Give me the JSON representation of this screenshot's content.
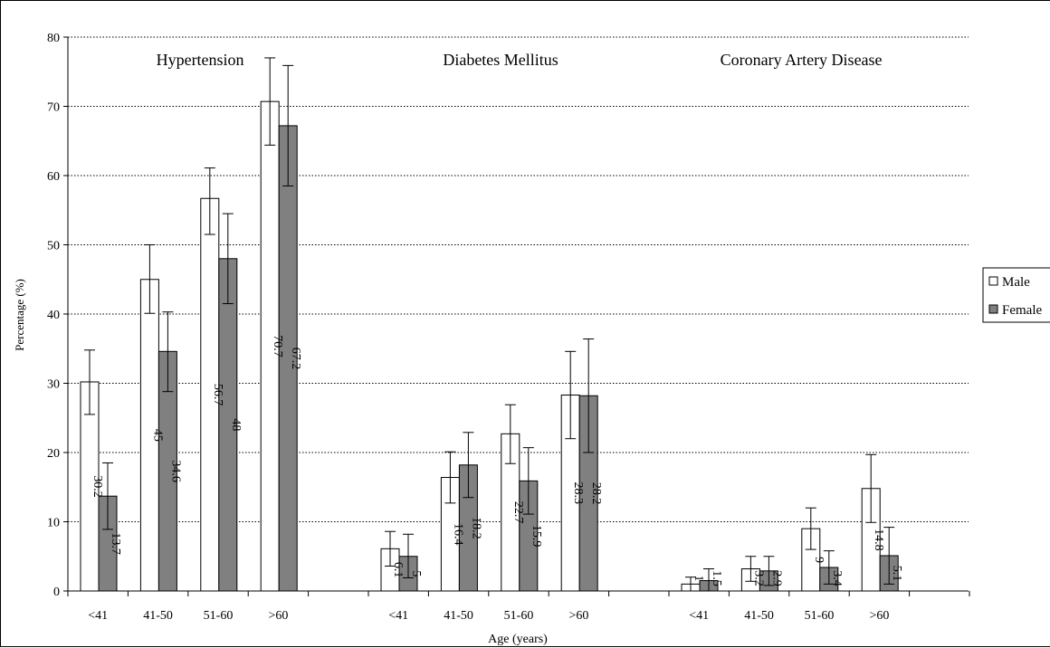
{
  "chart_data": {
    "type": "bar",
    "xlabel": "Age (years)",
    "ylabel": "Percentage (%)",
    "ylim": [
      0,
      80
    ],
    "yticks": [
      0,
      10,
      20,
      30,
      40,
      50,
      60,
      70,
      80
    ],
    "grid": true,
    "legend_position": "right",
    "groups": [
      {
        "title": "Hypertension",
        "categories": [
          "<41",
          "41-50",
          "51-60",
          ">60"
        ],
        "series": [
          {
            "name": "Male",
            "values": [
              30.2,
              45,
              56.7,
              70.7
            ],
            "errors": [
              [
                25.5,
                34.8
              ],
              [
                40.1,
                50.0
              ],
              [
                51.5,
                61.1
              ],
              [
                64.4,
                77.0
              ]
            ]
          },
          {
            "name": "Female",
            "values": [
              13.7,
              34.6,
              48,
              67.2
            ],
            "errors": [
              [
                8.9,
                18.5
              ],
              [
                28.8,
                40.3
              ],
              [
                41.5,
                54.5
              ],
              [
                58.5,
                75.9
              ]
            ]
          }
        ]
      },
      {
        "title": "Diabetes Mellitus",
        "categories": [
          "<41",
          "41-50",
          "51-60",
          ">60"
        ],
        "series": [
          {
            "name": "Male",
            "values": [
              6.1,
              16.4,
              22.7,
              28.3
            ],
            "errors": [
              [
                3.6,
                8.6
              ],
              [
                12.7,
                20.1
              ],
              [
                18.4,
                26.9
              ],
              [
                22.0,
                34.6
              ]
            ]
          },
          {
            "name": "Female",
            "values": [
              5,
              18.2,
              15.9,
              28.2
            ],
            "errors": [
              [
                1.9,
                8.2
              ],
              [
                13.5,
                22.9
              ],
              [
                11.1,
                20.7
              ],
              [
                20.0,
                36.4
              ]
            ]
          }
        ]
      },
      {
        "title": "Coronary Artery Disease",
        "categories": [
          "<41",
          "41-50",
          "51-60",
          ">60"
        ],
        "series": [
          {
            "name": "Male",
            "values": [
              1,
              3.2,
              9,
              14.8
            ],
            "errors": [
              [
                0.0,
                2.0
              ],
              [
                1.4,
                5.0
              ],
              [
                6.0,
                12.0
              ],
              [
                9.9,
                19.7
              ]
            ]
          },
          {
            "name": "Female",
            "values": [
              1.5,
              2.9,
              3.4,
              5.1
            ],
            "errors": [
              [
                0.0,
                3.2
              ],
              [
                0.8,
                5.0
              ],
              [
                1.0,
                5.8
              ],
              [
                1.0,
                9.2
              ]
            ]
          }
        ]
      }
    ],
    "colors": {
      "male": "#ffffff",
      "female": "#808080",
      "grid": "#000000",
      "border": "#000000"
    }
  }
}
